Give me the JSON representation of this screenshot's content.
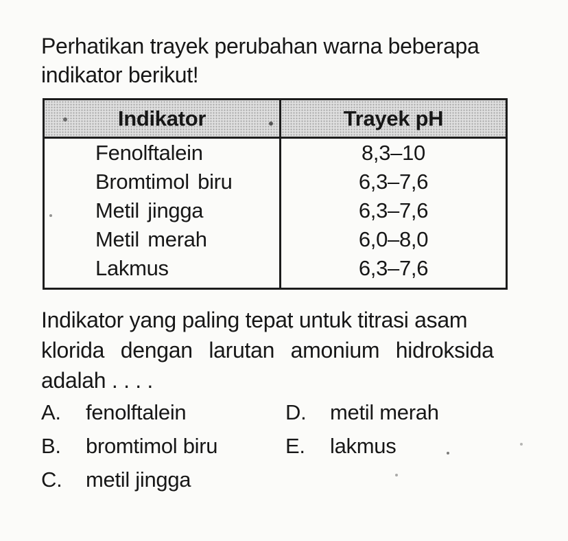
{
  "colors": {
    "page_bg": "#fbfbf9",
    "text": "#171717",
    "table_border": "#1c1c1c",
    "header_bg": "#dedede",
    "header_dot": "#a0a0a0"
  },
  "intro": {
    "line1": "Perhatikan trayek perubahan warna beberapa",
    "line2": "indikator berikut!"
  },
  "table": {
    "headers": [
      "Indikator",
      "Trayek pH"
    ],
    "rows": [
      {
        "indikator": "Fenolftalein",
        "trayek": "8,3–10"
      },
      {
        "indikator": "Bromtimol biru",
        "trayek": "6,3–7,6"
      },
      {
        "indikator": "Metil jingga",
        "trayek": "6,3–7,6"
      },
      {
        "indikator": "Metil merah",
        "trayek": "6,0–8,0"
      },
      {
        "indikator": "Lakmus",
        "trayek": "6,3–7,6"
      }
    ]
  },
  "question": {
    "line1": "Indikator yang paling tepat untuk titrasi asam",
    "line2": "klorida dengan larutan amonium hidroksida",
    "line3": "adalah . . . ."
  },
  "options": [
    {
      "letter": "A.",
      "label": "fenolftalein"
    },
    {
      "letter": "B.",
      "label": "bromtimol biru"
    },
    {
      "letter": "C.",
      "label": "metil jingga"
    },
    {
      "letter": "D.",
      "label": "metil merah"
    },
    {
      "letter": "E.",
      "label": "lakmus"
    }
  ]
}
